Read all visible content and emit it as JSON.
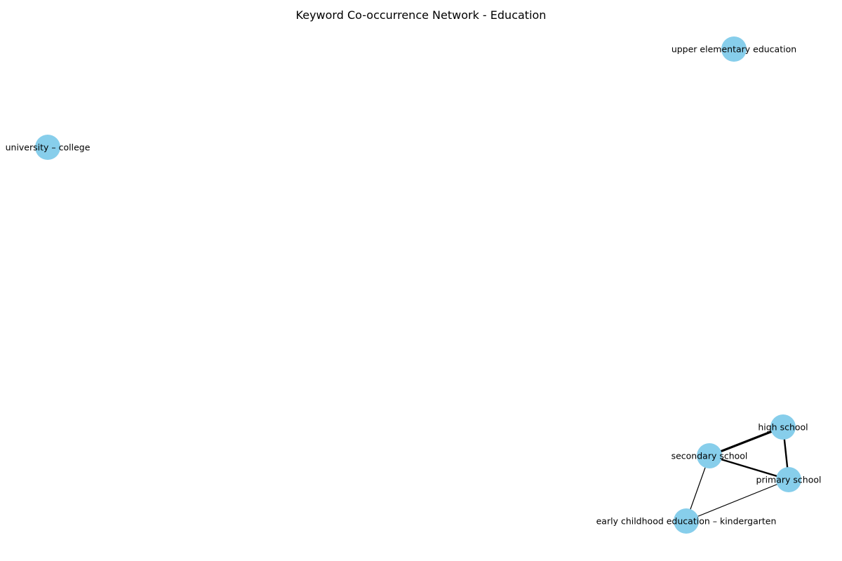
{
  "title": "Keyword Co-occurrence Network - Education",
  "colors": {
    "node": "#87CEEB",
    "edge": "#000000",
    "background": "#ffffff"
  },
  "nodes": [
    {
      "id": "upper_elementary",
      "label": "upper elementary education"
    },
    {
      "id": "university_college",
      "label": "university – college"
    },
    {
      "id": "high_school",
      "label": "high school"
    },
    {
      "id": "secondary_school",
      "label": "secondary school"
    },
    {
      "id": "primary_school",
      "label": "primary school"
    },
    {
      "id": "early_childhood",
      "label": "early childhood education – kindergarten"
    }
  ],
  "edges": [
    {
      "source": "secondary_school",
      "target": "high_school",
      "weight": 3
    },
    {
      "source": "high_school",
      "target": "primary_school",
      "weight": 2
    },
    {
      "source": "secondary_school",
      "target": "primary_school",
      "weight": 2
    },
    {
      "source": "secondary_school",
      "target": "early_childhood",
      "weight": 1
    },
    {
      "source": "primary_school",
      "target": "early_childhood",
      "weight": 1
    }
  ]
}
